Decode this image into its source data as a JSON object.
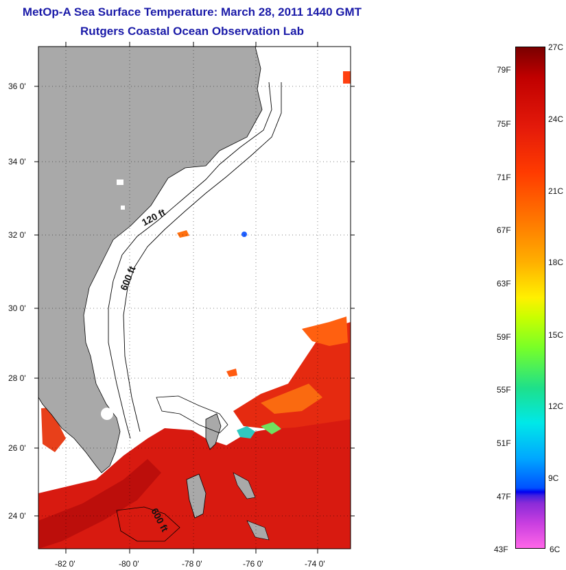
{
  "title": "MetOp-A Sea Surface Temperature:  March 28, 2011 1440 GMT",
  "subtitle": "Rutgers Coastal Ocean Observation Lab",
  "map": {
    "lat_labels": [
      "36 0'",
      "34 0'",
      "32 0'",
      "30 0'",
      "28 0'",
      "26 0'",
      "24 0'"
    ],
    "lon_labels": [
      "-82 0'",
      "-80 0'",
      "-78 0'",
      "-76 0'",
      "-74 0'"
    ],
    "contour_labels": [
      "120 ft",
      "600 ft",
      "600 ft"
    ],
    "colors": {
      "land": "#a9a9a9",
      "warm_sst": "#d81a10",
      "hot_sst": "#b00a0a",
      "cloud": "#ffffff"
    }
  },
  "colorbar": {
    "fahrenheit_labels": [
      "79F",
      "75F",
      "71F",
      "67F",
      "63F",
      "59F",
      "55F",
      "51F",
      "47F",
      "43F"
    ],
    "celsius_labels": [
      "27C",
      "24C",
      "21C",
      "18C",
      "15C",
      "12C",
      "9C",
      "6C"
    ]
  }
}
